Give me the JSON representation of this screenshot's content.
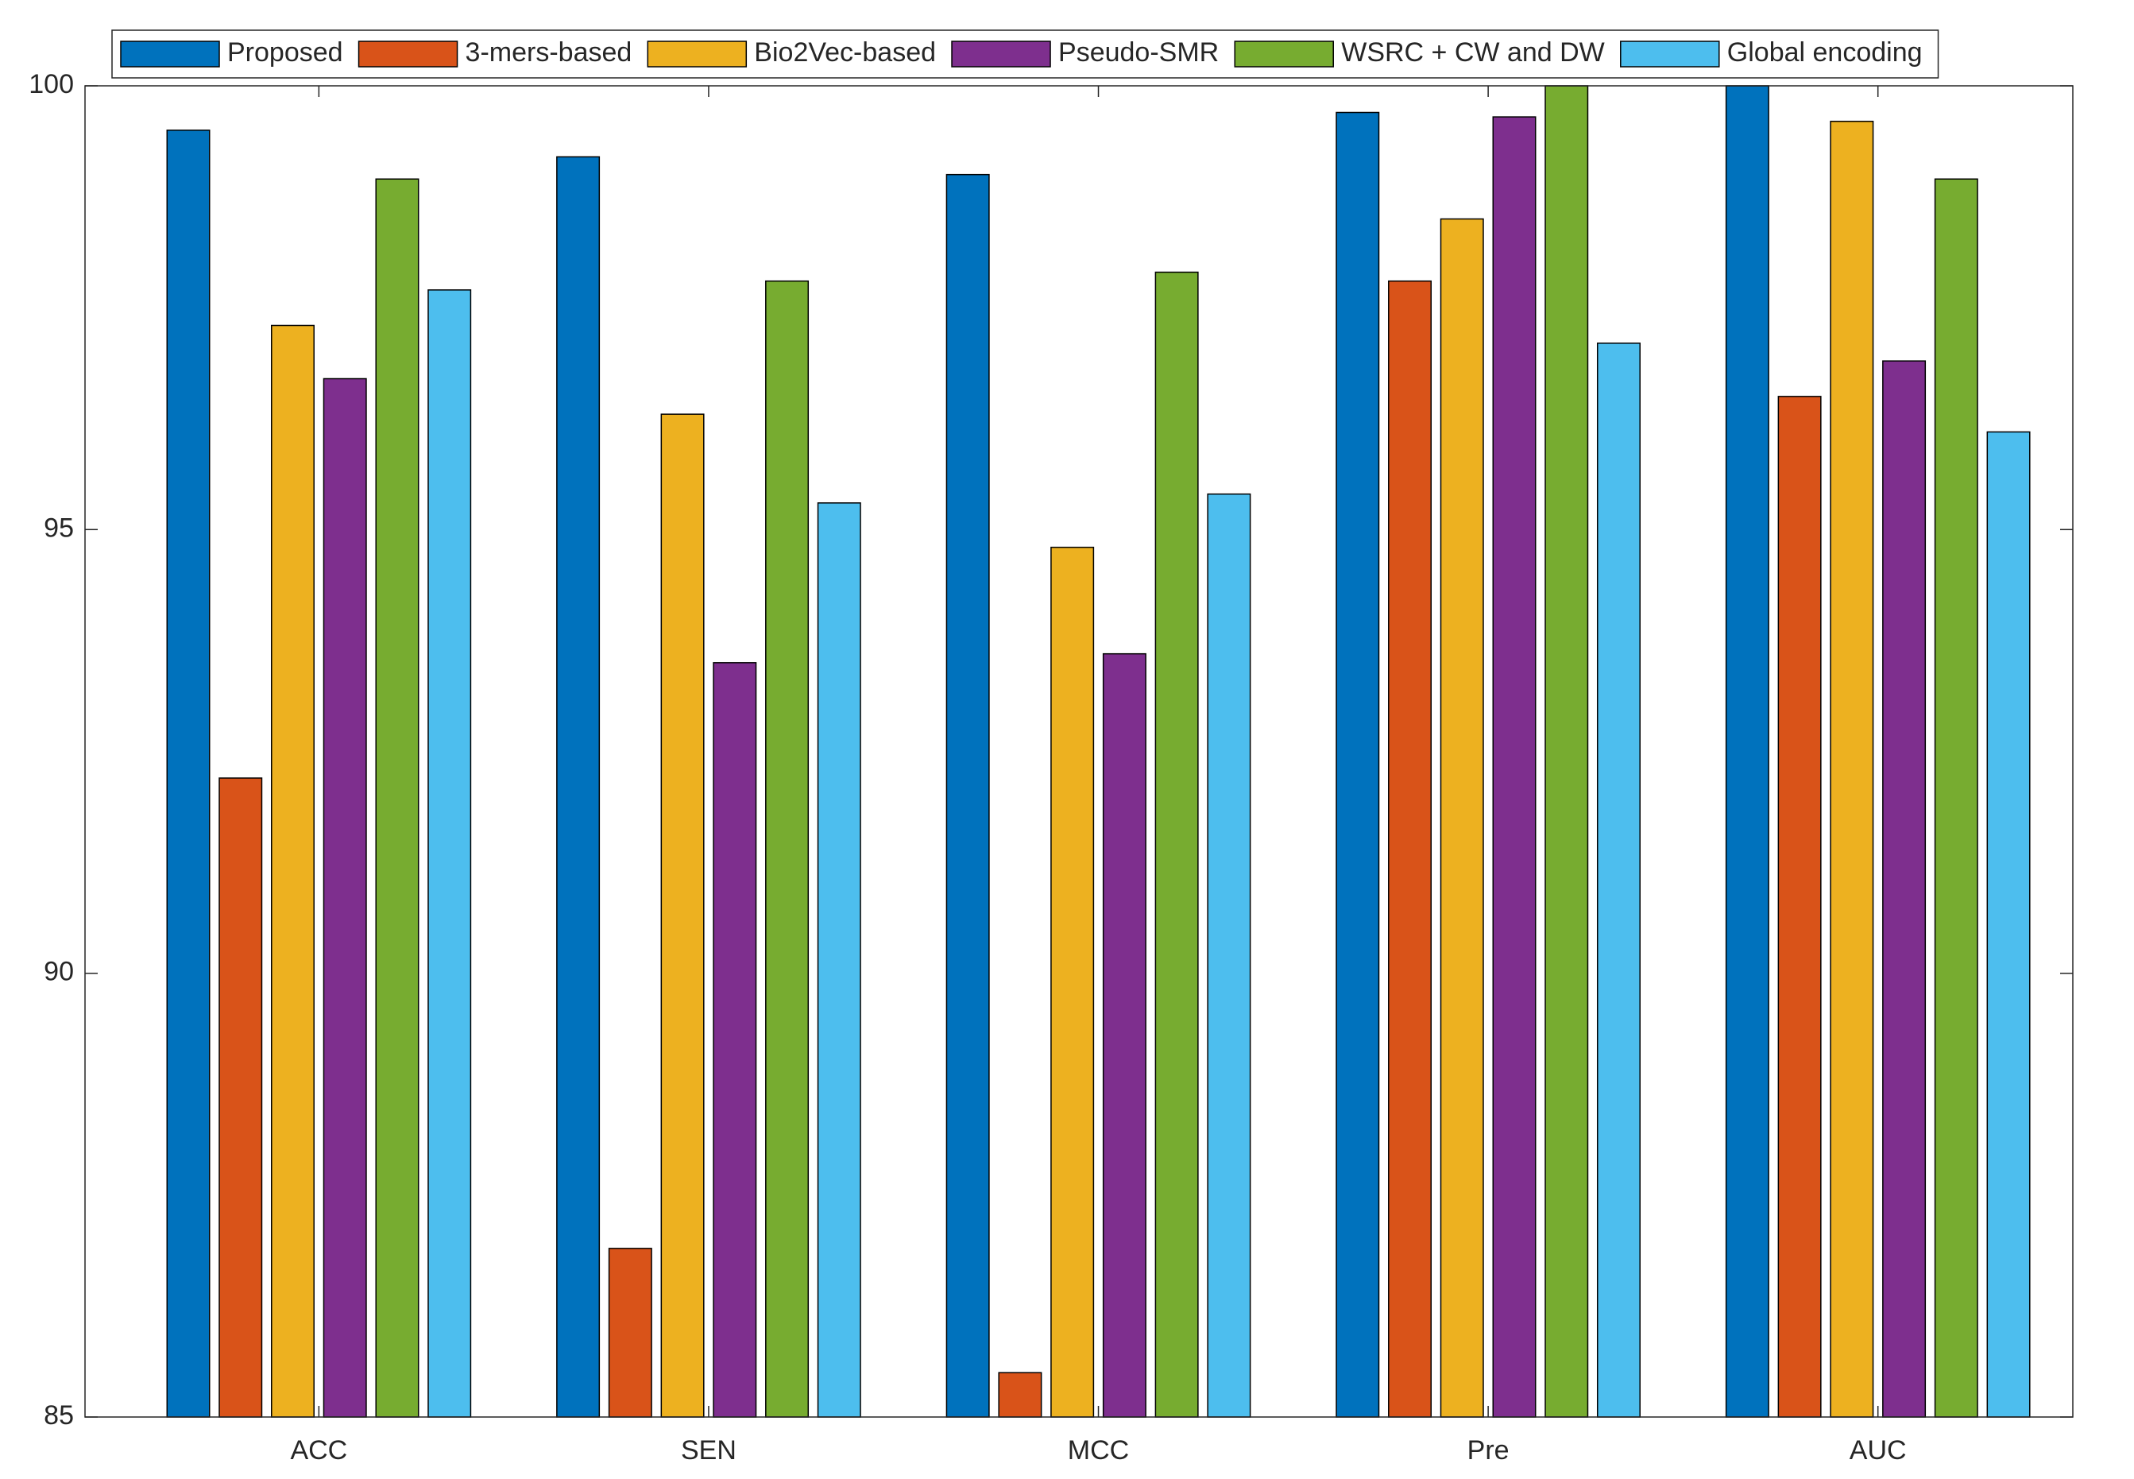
{
  "chart_data": {
    "type": "bar",
    "categories": [
      "ACC",
      "SEN",
      "MCC",
      "Pre",
      "AUC"
    ],
    "series": [
      {
        "name": "Proposed",
        "color": "#0072BD",
        "values": [
          99.5,
          99.2,
          99.0,
          99.7,
          100.0
        ]
      },
      {
        "name": "3-mers-based",
        "color": "#D95319",
        "values": [
          92.2,
          86.9,
          85.5,
          97.8,
          96.5
        ]
      },
      {
        "name": "Bio2Vec-based",
        "color": "#EDB120",
        "values": [
          97.3,
          96.3,
          94.8,
          98.5,
          99.6
        ]
      },
      {
        "name": "Pseudo-SMR",
        "color": "#7E2F8E",
        "values": [
          96.7,
          93.5,
          93.6,
          99.65,
          96.9
        ]
      },
      {
        "name": "WSRC + CW and DW",
        "color": "#77AC30",
        "values": [
          98.95,
          97.8,
          97.9,
          100.0,
          98.95
        ]
      },
      {
        "name": "Global encoding",
        "color": "#4DBEEE",
        "values": [
          97.7,
          95.3,
          95.4,
          97.1,
          96.1
        ]
      }
    ],
    "ylim": [
      85,
      100
    ],
    "yticks": [
      85,
      90,
      95,
      100
    ],
    "grid": false,
    "legend": "top"
  }
}
